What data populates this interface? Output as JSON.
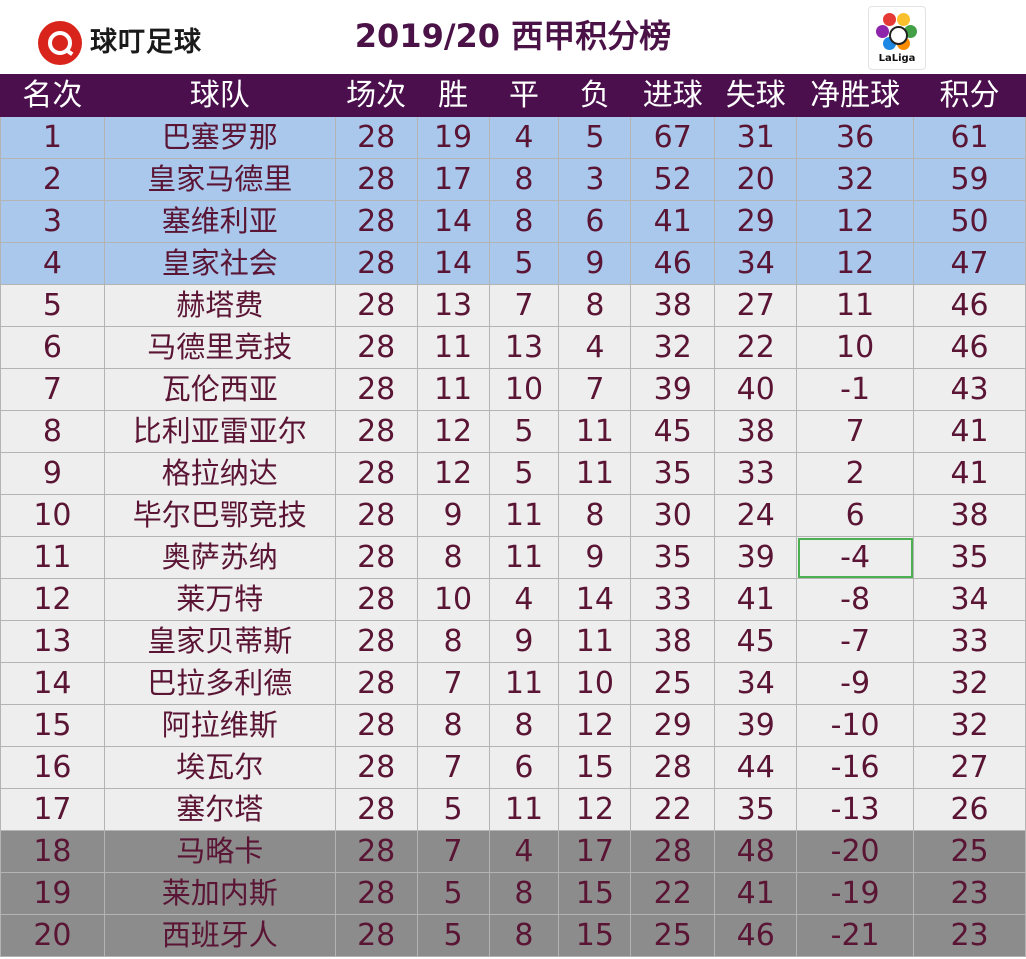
{
  "brand": {
    "name": "球叮足球"
  },
  "title": "2019/20 西甲积分榜",
  "league_logo": {
    "text": "LaLiga"
  },
  "colors": {
    "header_bg": "#4b0f4e",
    "title": "#4b1248",
    "cell_text": "#5a1434",
    "champions_zone": "#a9c8ec",
    "middle_zone": "#eeeeee",
    "relegation_zone": "#8c8c8c",
    "selection": "#4caf50",
    "brand_red": "#d9241c"
  },
  "columns": [
    "名次",
    "球队",
    "场次",
    "胜",
    "平",
    "负",
    "进球",
    "失球",
    "净胜球",
    "积分"
  ],
  "rows": [
    [
      "1",
      "巴塞罗那",
      "28",
      "19",
      "4",
      "5",
      "67",
      "31",
      "36",
      "61"
    ],
    [
      "2",
      "皇家马德里",
      "28",
      "17",
      "8",
      "3",
      "52",
      "20",
      "32",
      "59"
    ],
    [
      "3",
      "塞维利亚",
      "28",
      "14",
      "8",
      "6",
      "41",
      "29",
      "12",
      "50"
    ],
    [
      "4",
      "皇家社会",
      "28",
      "14",
      "5",
      "9",
      "46",
      "34",
      "12",
      "47"
    ],
    [
      "5",
      "赫塔费",
      "28",
      "13",
      "7",
      "8",
      "38",
      "27",
      "11",
      "46"
    ],
    [
      "6",
      "马德里竞技",
      "28",
      "11",
      "13",
      "4",
      "32",
      "22",
      "10",
      "46"
    ],
    [
      "7",
      "瓦伦西亚",
      "28",
      "11",
      "10",
      "7",
      "39",
      "40",
      "-1",
      "43"
    ],
    [
      "8",
      "比利亚雷亚尔",
      "28",
      "12",
      "5",
      "11",
      "45",
      "38",
      "7",
      "41"
    ],
    [
      "9",
      "格拉纳达",
      "28",
      "12",
      "5",
      "11",
      "35",
      "33",
      "2",
      "41"
    ],
    [
      "10",
      "毕尔巴鄂竞技",
      "28",
      "9",
      "11",
      "8",
      "30",
      "24",
      "6",
      "38"
    ],
    [
      "11",
      "奥萨苏纳",
      "28",
      "8",
      "11",
      "9",
      "35",
      "39",
      "-4",
      "35"
    ],
    [
      "12",
      "莱万特",
      "28",
      "10",
      "4",
      "14",
      "33",
      "41",
      "-8",
      "34"
    ],
    [
      "13",
      "皇家贝蒂斯",
      "28",
      "8",
      "9",
      "11",
      "38",
      "45",
      "-7",
      "33"
    ],
    [
      "14",
      "巴拉多利德",
      "28",
      "7",
      "11",
      "10",
      "25",
      "34",
      "-9",
      "32"
    ],
    [
      "15",
      "阿拉维斯",
      "28",
      "8",
      "8",
      "12",
      "29",
      "39",
      "-10",
      "32"
    ],
    [
      "16",
      "埃瓦尔",
      "28",
      "7",
      "6",
      "15",
      "28",
      "44",
      "-16",
      "27"
    ],
    [
      "17",
      "塞尔塔",
      "28",
      "5",
      "11",
      "12",
      "22",
      "35",
      "-13",
      "26"
    ],
    [
      "18",
      "马略卡",
      "28",
      "7",
      "4",
      "17",
      "28",
      "48",
      "-20",
      "25"
    ],
    [
      "19",
      "莱加内斯",
      "28",
      "5",
      "8",
      "15",
      "22",
      "41",
      "-19",
      "23"
    ],
    [
      "20",
      "西班牙人",
      "28",
      "5",
      "8",
      "15",
      "25",
      "46",
      "-21",
      "23"
    ]
  ],
  "selected_cell": {
    "row": 11,
    "column": "净胜球"
  }
}
